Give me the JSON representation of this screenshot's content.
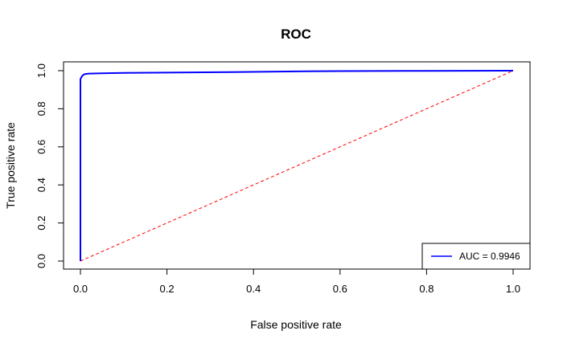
{
  "chart_data": {
    "type": "line",
    "title": "ROC",
    "xlabel": "False positive rate",
    "ylabel": "True positive rate",
    "xlim": [
      0,
      1
    ],
    "ylim": [
      0,
      1
    ],
    "x_ticks": [
      0.0,
      0.2,
      0.4,
      0.6,
      0.8,
      1.0
    ],
    "y_ticks": [
      0.0,
      0.2,
      0.4,
      0.6,
      0.8,
      1.0
    ],
    "x_tick_labels": [
      "0.0",
      "0.2",
      "0.4",
      "0.6",
      "0.8",
      "1.0"
    ],
    "y_tick_labels": [
      "0.0",
      "0.2",
      "0.4",
      "0.6",
      "0.8",
      "1.0"
    ],
    "grid": false,
    "legend_position": "bottom-right",
    "series": [
      {
        "name": "AUC = 0.9946",
        "color": "#0000ff",
        "style": "solid",
        "x": [
          0.0,
          0.0,
          0.0,
          0.002,
          0.005,
          0.01,
          0.02,
          0.05,
          0.1,
          0.2,
          0.35,
          0.5,
          0.6,
          0.8,
          1.0
        ],
        "y": [
          0.0,
          0.9,
          0.955,
          0.965,
          0.975,
          0.982,
          0.985,
          0.986,
          0.988,
          0.99,
          0.993,
          0.996,
          0.998,
          0.999,
          1.0
        ]
      },
      {
        "color": "#ff0000",
        "style": "dashed",
        "x": [
          0,
          1
        ],
        "y": [
          0,
          1
        ]
      }
    ]
  }
}
